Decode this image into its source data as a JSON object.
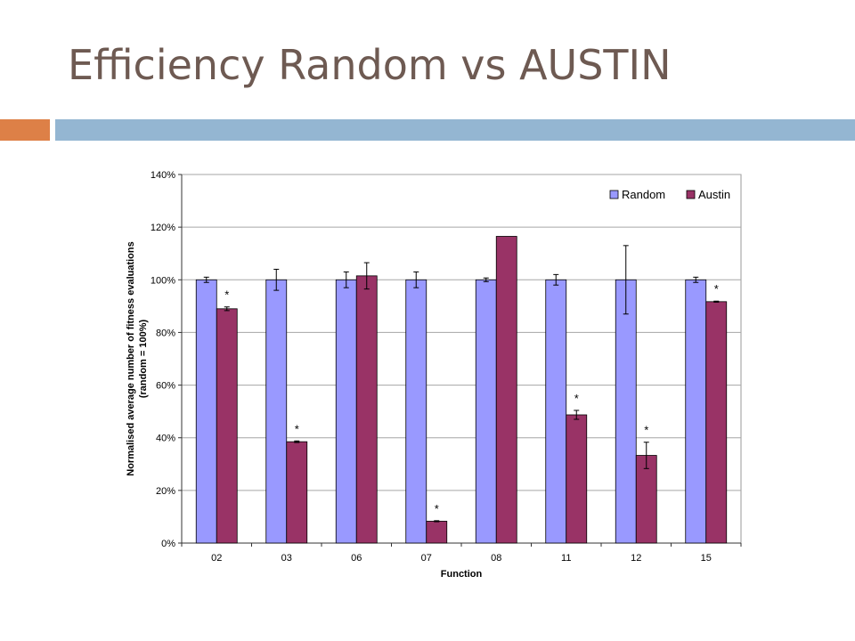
{
  "slide": {
    "title": "Efficiency Random vs AUSTIN"
  },
  "colors": {
    "title": "#6e5a52",
    "accent_orange": "#dd8047",
    "accent_blue": "#94b6d2",
    "random": "#9999ff",
    "austin": "#993366"
  },
  "chart_data": {
    "type": "bar",
    "title": "",
    "xlabel": "Function",
    "ylabel_lines": [
      "Normalised average number of fitness evaluations",
      "(random = 100%)"
    ],
    "ylim": [
      0,
      140
    ],
    "yticks": [
      0,
      20,
      40,
      60,
      80,
      100,
      120,
      140
    ],
    "ytick_labels": [
      "0%",
      "20%",
      "40%",
      "60%",
      "80%",
      "100%",
      "120%",
      "140%"
    ],
    "grid": true,
    "legend": "top-right",
    "categories": [
      "02",
      "03",
      "06",
      "07",
      "08",
      "11",
      "12",
      "15"
    ],
    "series": [
      {
        "name": "Random",
        "color": "#9999ff",
        "values": [
          100,
          100,
          100,
          100,
          100,
          100,
          100,
          100
        ],
        "errors": [
          1,
          4,
          3,
          3,
          0.7,
          2,
          13,
          1
        ]
      },
      {
        "name": "Austin",
        "color": "#993366",
        "values": [
          89,
          38.5,
          101.5,
          8.3,
          116.5,
          48.7,
          33.3,
          91.7
        ],
        "errors": [
          0.7,
          0.3,
          5,
          0.2,
          0,
          1.7,
          5,
          0.2
        ]
      }
    ],
    "significance_marker": "*",
    "significant": [
      true,
      true,
      false,
      true,
      false,
      true,
      true,
      true
    ]
  }
}
